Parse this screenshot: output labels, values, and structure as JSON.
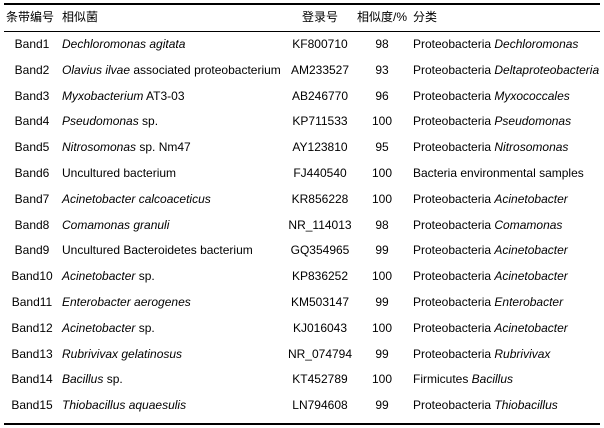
{
  "header": {
    "band": "条带编号",
    "species": "相似菌",
    "accession": "登录号",
    "similarity": "相似度/%",
    "classification": "分类"
  },
  "rows": [
    {
      "band": "Band1",
      "species": [
        {
          "t": "Dechloromonas agitata",
          "i": true
        }
      ],
      "accession": "KF800710",
      "similarity": "98",
      "classification": [
        {
          "t": "Proteobacteria ",
          "i": false
        },
        {
          "t": "Dechloromonas",
          "i": true
        }
      ]
    },
    {
      "band": "Band2",
      "species": [
        {
          "t": "Olavius ilvae",
          "i": true
        },
        {
          "t": " associated proteobacterium",
          "i": false
        }
      ],
      "accession": "AM233527",
      "similarity": "93",
      "classification": [
        {
          "t": "Proteobacteria ",
          "i": false
        },
        {
          "t": "Deltaproteobacteria",
          "i": true
        }
      ]
    },
    {
      "band": "Band3",
      "species": [
        {
          "t": "Myxobacterium",
          "i": true
        },
        {
          "t": " AT3-03",
          "i": false
        }
      ],
      "accession": "AB246770",
      "similarity": "96",
      "classification": [
        {
          "t": "Proteobacteria ",
          "i": false
        },
        {
          "t": "Myxococcales",
          "i": true
        }
      ]
    },
    {
      "band": "Band4",
      "species": [
        {
          "t": "Pseudomonas",
          "i": true
        },
        {
          "t": " sp.",
          "i": false
        }
      ],
      "accession": "KP711533",
      "similarity": "100",
      "classification": [
        {
          "t": "Proteobacteria ",
          "i": false
        },
        {
          "t": "Pseudomonas",
          "i": true
        }
      ]
    },
    {
      "band": "Band5",
      "species": [
        {
          "t": "Nitrosomonas",
          "i": true
        },
        {
          "t": " sp. Nm47",
          "i": false
        }
      ],
      "accession": "AY123810",
      "similarity": "95",
      "classification": [
        {
          "t": "Proteobacteria ",
          "i": false
        },
        {
          "t": "Nitrosomonas",
          "i": true
        }
      ]
    },
    {
      "band": "Band6",
      "species": [
        {
          "t": "Uncultured bacterium",
          "i": false
        }
      ],
      "accession": "FJ440540",
      "similarity": "100",
      "classification": [
        {
          "t": "Bacteria environmental samples",
          "i": false
        }
      ]
    },
    {
      "band": "Band7",
      "species": [
        {
          "t": "Acinetobacter calcoaceticus",
          "i": true
        }
      ],
      "accession": "KR856228",
      "similarity": "100",
      "classification": [
        {
          "t": "Proteobacteria ",
          "i": false
        },
        {
          "t": "Acinetobacter",
          "i": true
        }
      ]
    },
    {
      "band": "Band8",
      "species": [
        {
          "t": "Comamonas granuli",
          "i": true
        }
      ],
      "accession": "NR_114013",
      "similarity": "98",
      "classification": [
        {
          "t": "Proteobacteria ",
          "i": false
        },
        {
          "t": "Comamonas",
          "i": true
        }
      ]
    },
    {
      "band": "Band9",
      "species": [
        {
          "t": "Uncultured Bacteroidetes bacterium",
          "i": false
        }
      ],
      "accession": "GQ354965",
      "similarity": "99",
      "classification": [
        {
          "t": "Proteobacteria ",
          "i": false
        },
        {
          "t": "Acinetobacter",
          "i": true
        }
      ]
    },
    {
      "band": "Band10",
      "species": [
        {
          "t": "Acinetobacter",
          "i": true
        },
        {
          "t": " sp.",
          "i": false
        }
      ],
      "accession": "KP836252",
      "similarity": "100",
      "classification": [
        {
          "t": "Proteobacteria ",
          "i": false
        },
        {
          "t": "Acinetobacter",
          "i": true
        }
      ]
    },
    {
      "band": "Band11",
      "species": [
        {
          "t": "Enterobacter aerogenes",
          "i": true
        }
      ],
      "accession": "KM503147",
      "similarity": "99",
      "classification": [
        {
          "t": "Proteobacteria ",
          "i": false
        },
        {
          "t": "Enterobacter",
          "i": true
        }
      ]
    },
    {
      "band": "Band12",
      "species": [
        {
          "t": "Acinetobacter",
          "i": true
        },
        {
          "t": " sp.",
          "i": false
        }
      ],
      "accession": "KJ016043",
      "similarity": "100",
      "classification": [
        {
          "t": "Proteobacteria ",
          "i": false
        },
        {
          "t": "Acinetobacter",
          "i": true
        }
      ]
    },
    {
      "band": "Band13",
      "species": [
        {
          "t": "Rubrivivax gelatinosus",
          "i": true
        }
      ],
      "accession": "NR_074794",
      "similarity": "99",
      "classification": [
        {
          "t": "Proteobacteria ",
          "i": false
        },
        {
          "t": "Rubrivivax",
          "i": true
        }
      ]
    },
    {
      "band": "Band14",
      "species": [
        {
          "t": "Bacillus",
          "i": true
        },
        {
          "t": " sp.",
          "i": false
        }
      ],
      "accession": "KT452789",
      "similarity": "100",
      "classification": [
        {
          "t": "Firmicutes ",
          "i": false
        },
        {
          "t": "Bacillus",
          "i": true
        }
      ]
    },
    {
      "band": "Band15",
      "species": [
        {
          "t": "Thiobacillus aquaesulis",
          "i": true
        }
      ],
      "accession": "LN794608",
      "similarity": "99",
      "classification": [
        {
          "t": "Proteobacteria ",
          "i": false
        },
        {
          "t": "Thiobacillus",
          "i": true
        }
      ]
    }
  ]
}
